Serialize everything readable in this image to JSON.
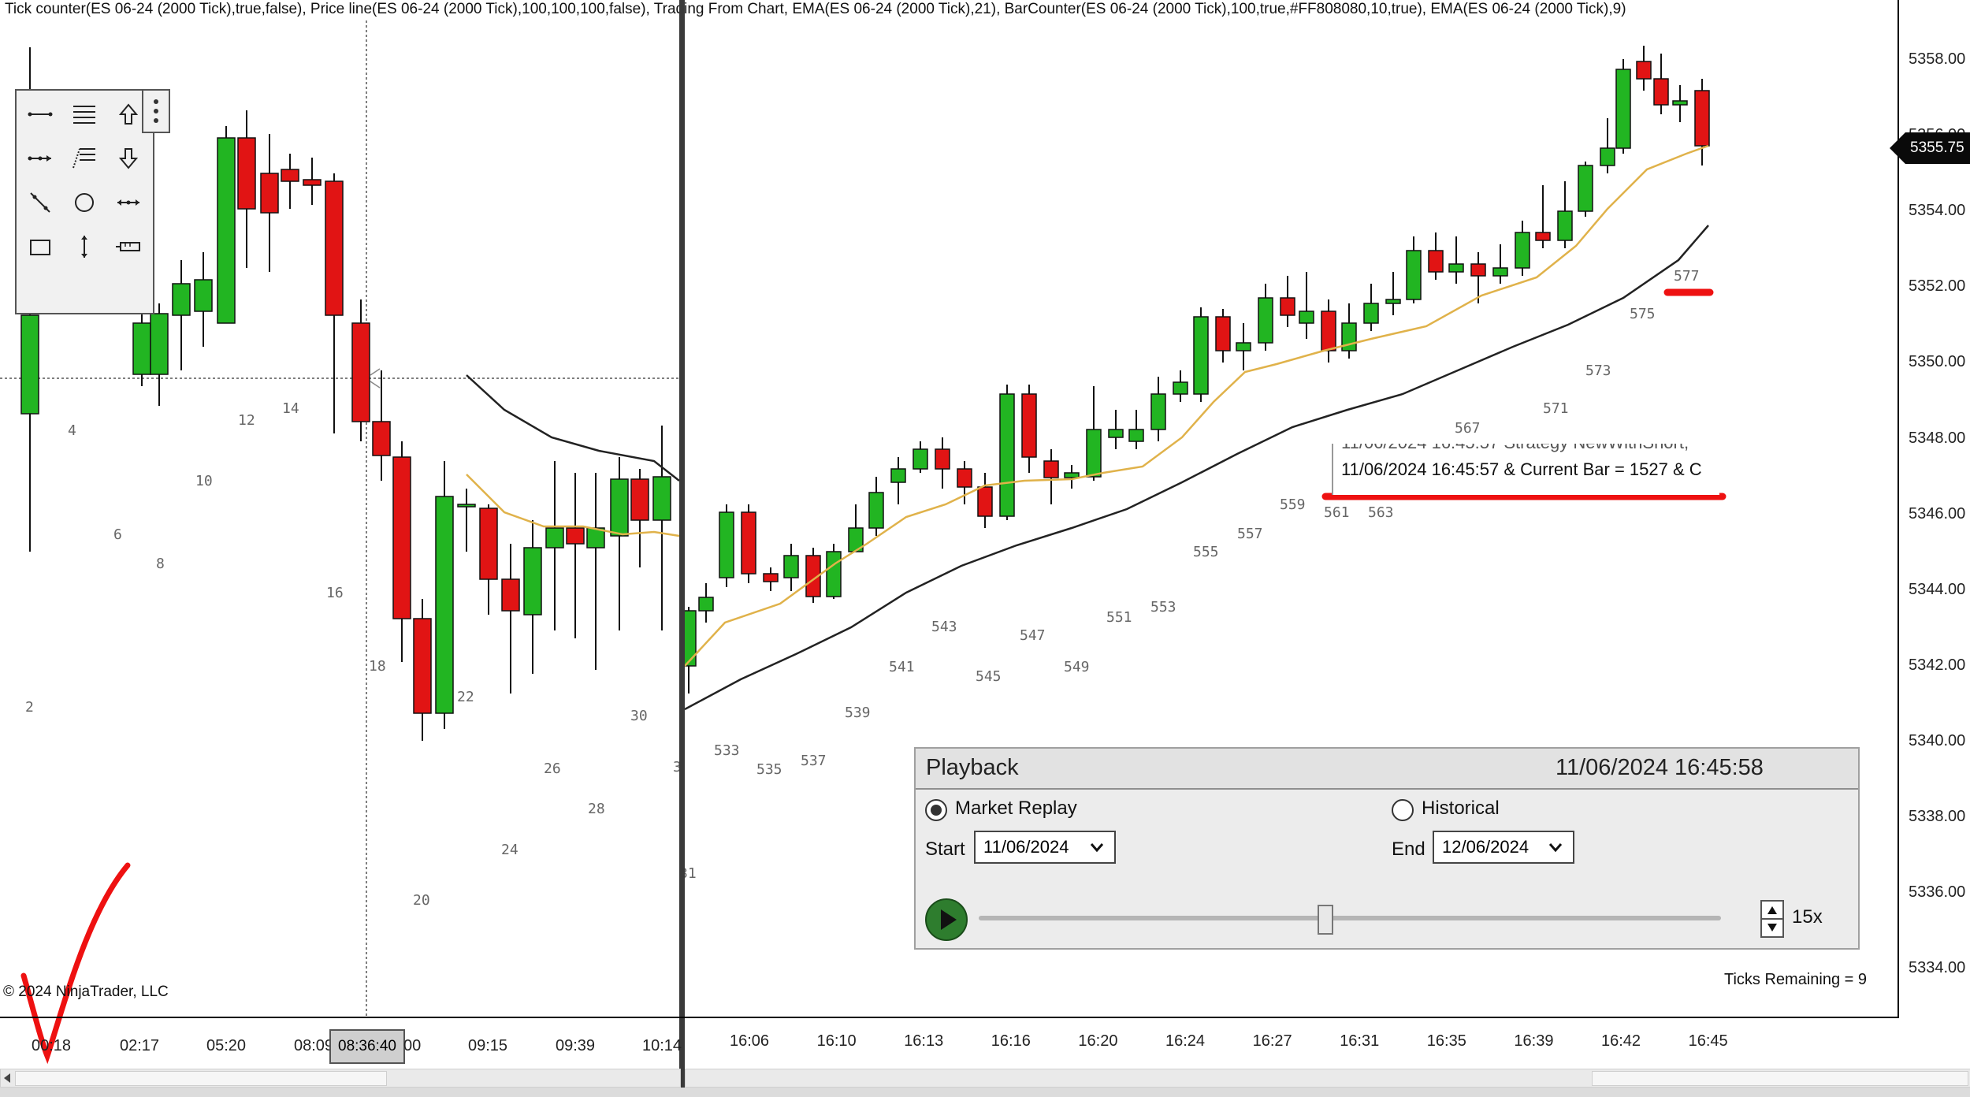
{
  "header": {
    "indicators_text": "Tick counter(ES 06-24 (2000 Tick),true,false), Price line(ES 06-24 (2000 Tick),100,100,100,false), Trading From Chart, EMA(ES 06-24 (2000 Tick),21), BarCounter(ES 06-24 (2000 Tick),100,true,#FF808080,10,true), EMA(ES 06-24 (2000 Tick),9)"
  },
  "price_axis": {
    "ticks": [
      "5358.00",
      "5356.00",
      "5354.00",
      "5352.00",
      "5350.00",
      "5348.00",
      "5346.00",
      "5344.00",
      "5342.00",
      "5340.00",
      "5338.00",
      "5336.00",
      "5334.00"
    ],
    "current_price": "5355.75"
  },
  "left_time_axis": {
    "ticks": [
      "00:18",
      "02:17",
      "05:20",
      "08:09",
      "09:15",
      "09:39",
      "10:14"
    ],
    "partial_after_badge": "00",
    "crosshair_time": "08:36:40"
  },
  "right_time_axis": {
    "ticks": [
      "16:06",
      "16:10",
      "16:13",
      "16:16",
      "16:20",
      "16:24",
      "16:27",
      "16:31",
      "16:35",
      "16:39",
      "16:42",
      "16:45"
    ]
  },
  "left_bar_numbers": [
    "2",
    "4",
    "6",
    "8",
    "10",
    "12",
    "14",
    "16",
    "18",
    "20",
    "22",
    "24",
    "26",
    "28",
    "30",
    "3",
    "31"
  ],
  "right_bar_numbers": [
    "533",
    "535",
    "537",
    "539",
    "541",
    "543",
    "545",
    "547",
    "549",
    "551",
    "553",
    "555",
    "557",
    "559",
    "561",
    "563",
    "567",
    "571",
    "573",
    "575",
    "577"
  ],
  "copyright": "© 2024 NinjaTrader, LLC",
  "ticks_remaining": "Ticks Remaining = 9",
  "tooltip": {
    "line1": "11/06/2024 16:45:57 Strategy  NewWithShort, ",
    "line2": "11/06/2024 16:45:57 & Current Bar =   1527 & C"
  },
  "playback": {
    "title": "Playback",
    "datetime": "11/06/2024 16:45:58",
    "market_replay_label": "Market Replay",
    "historical_label": "Historical",
    "start_label": "Start",
    "start_value": "11/06/2024",
    "end_label": "End",
    "end_value": "12/06/2024",
    "speed": "15x",
    "mode_selected": "Market Replay",
    "slider_position": 0.5
  },
  "toolbar": {
    "tools": [
      "line-icon",
      "horizontal-lines-icon",
      "arrow-up-icon",
      "ray-icon",
      "fib-icon",
      "arrow-down-icon",
      "extended-line-icon",
      "ellipse-icon",
      "horizontal-line-icon",
      "rectangle-icon",
      "vertical-line-icon",
      "ruler-icon"
    ]
  },
  "colors": {
    "bull": "#22b522",
    "bear": "#e11414",
    "ema9": "#e0b24a",
    "ema21": "#222222",
    "annotation": "#ee1111"
  }
}
